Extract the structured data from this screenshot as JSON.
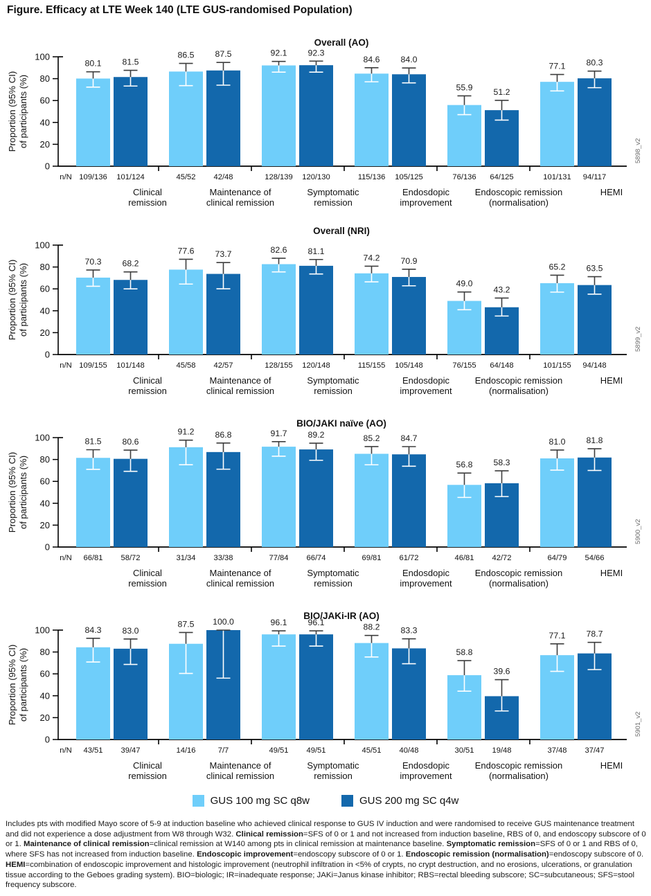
{
  "figure_title": "Figure. Efficacy at LTE Week 140 (LTE GUS-randomised Population)",
  "colors": {
    "series1": "#6FCEFA",
    "series2": "#1368AC",
    "error_bar_outside": "#3d3d3d",
    "error_bar_inside": "#ffffff",
    "axis": "#000000",
    "side_label": "#6b6b6b"
  },
  "y_axis": {
    "label_line1": "Proportion (95% CI)",
    "label_line2": "of participants (%)",
    "ticks": [
      "0",
      "20",
      "40",
      "60",
      "80",
      "100"
    ],
    "max": 100
  },
  "n_over_N_row_label": "n/N",
  "chart_data": {
    "type": "bar",
    "ylim": [
      0,
      100
    ],
    "grid": false,
    "legend_position": "bottom",
    "legend": [
      "GUS 100 mg SC q8w",
      "GUS 200 mg SC q4w"
    ],
    "error_bars": "95% CI whiskers (derived from n/N shown under each bar)",
    "categories": [
      [
        "Clinical",
        "remission"
      ],
      [
        "Maintenance of",
        "clinical remission"
      ],
      [
        "Symptomatic",
        "remission"
      ],
      [
        "Endosdopic",
        "improvement"
      ],
      [
        "Endoscopic remission",
        "(normalisation)"
      ],
      [
        "HEMI"
      ]
    ],
    "charts": [
      {
        "title": "Overall (AO)",
        "side_label": "5898_v2",
        "series": [
          {
            "name": "GUS 100 mg SC q8w",
            "values": [
              "80.1",
              "86.5",
              "92.1",
              "84.6",
              "55.9",
              "77.1"
            ],
            "n_over_N": [
              "109/136",
              "45/52",
              "128/139",
              "115/136",
              "76/136",
              "101/131"
            ]
          },
          {
            "name": "GUS 200 mg SC q4w",
            "values": [
              "81.5",
              "87.5",
              "92.3",
              "84.0",
              "51.2",
              "80.3"
            ],
            "n_over_N": [
              "101/124",
              "42/48",
              "120/130",
              "105/125",
              "64/125",
              "94/117"
            ]
          }
        ]
      },
      {
        "title": "Overall (NRI)",
        "side_label": "5899_v2",
        "series": [
          {
            "name": "GUS 100 mg SC q8w",
            "values": [
              "70.3",
              "77.6",
              "82.6",
              "74.2",
              "49.0",
              "65.2"
            ],
            "n_over_N": [
              "109/155",
              "45/58",
              "128/155",
              "115/155",
              "76/155",
              "101/155"
            ]
          },
          {
            "name": "GUS 200 mg SC q4w",
            "values": [
              "68.2",
              "73.7",
              "81.1",
              "70.9",
              "43.2",
              "63.5"
            ],
            "n_over_N": [
              "101/148",
              "42/57",
              "120/148",
              "105/148",
              "64/148",
              "94/148"
            ]
          }
        ]
      },
      {
        "title": "BIO/JAKI naïve (AO)",
        "side_label": "5900_v2",
        "series": [
          {
            "name": "GUS 100 mg SC q8w",
            "values": [
              "81.5",
              "91.2",
              "91.7",
              "85.2",
              "56.8",
              "81.0"
            ],
            "n_over_N": [
              "66/81",
              "31/34",
              "77/84",
              "69/81",
              "46/81",
              "64/79"
            ]
          },
          {
            "name": "GUS 200 mg SC q4w",
            "values": [
              "80.6",
              "86.8",
              "89.2",
              "84.7",
              "58.3",
              "81.8"
            ],
            "n_over_N": [
              "58/72",
              "33/38",
              "66/74",
              "61/72",
              "42/72",
              "54/66"
            ]
          }
        ]
      },
      {
        "title": "BIO/JAKi-IR (AO)",
        "side_label": "5901_v2",
        "series": [
          {
            "name": "GUS 100 mg SC q8w",
            "values": [
              "84.3",
              "87.5",
              "96.1",
              "88.2",
              "58.8",
              "77.1"
            ],
            "n_over_N": [
              "43/51",
              "14/16",
              "49/51",
              "45/51",
              "30/51",
              "37/48"
            ]
          },
          {
            "name": "GUS 200 mg SC q4w",
            "values": [
              "83.0",
              "100.0",
              "96.1",
              "83.3",
              "39.6",
              "78.7"
            ],
            "n_over_N": [
              "39/47",
              "7/7",
              "49/51",
              "40/48",
              "19/48",
              "37/47"
            ]
          }
        ]
      }
    ]
  },
  "footnote": {
    "segments": [
      {
        "text": "Includes pts with modified Mayo score of 5-9 at induction baseline who achieved clinical response to GUS IV induction and were randomised to receive GUS maintenance treatment and did not experience a dose adjustment from W8 through W32. ",
        "bold": false
      },
      {
        "text": "Clinical remission",
        "bold": true
      },
      {
        "text": "=SFS of 0 or 1 and not increased from induction baseline, RBS of 0, and endoscopy subscore of 0 or 1. ",
        "bold": false
      },
      {
        "text": "Maintenance of clinical remission",
        "bold": true
      },
      {
        "text": "=clinical remission at W140 among pts in clinical remission at maintenance baseline. ",
        "bold": false
      },
      {
        "text": "Symptomatic remission",
        "bold": true
      },
      {
        "text": "=SFS of 0 or 1 and RBS of 0, where SFS has not increased from induction baseline. ",
        "bold": false
      },
      {
        "text": "Endoscopic improvement",
        "bold": true
      },
      {
        "text": "=endoscopy subscore of 0 or 1. ",
        "bold": false
      },
      {
        "text": "Endoscopic remission (normalisation)",
        "bold": true
      },
      {
        "text": "=endoscopy subscore of 0. ",
        "bold": false
      },
      {
        "text": "HEMI",
        "bold": true
      },
      {
        "text": "=combination of endoscopic improvement and histologic improvement (neutrophil infiltration in <5% of crypts, no crypt destruction, and no erosions, ulcerations, or granulation tissue according to the Geboes grading system). BIO=biologic; IR=inadequate response; JAKi=Janus kinase inhibitor; RBS=rectal bleeding subscore; SC=subcutaneous; SFS=stool frequency subscore.",
        "bold": false
      }
    ]
  }
}
